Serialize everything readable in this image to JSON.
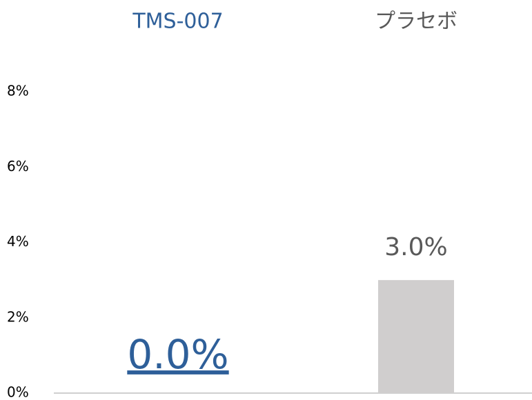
{
  "chart_data": {
    "type": "bar",
    "categories": [
      "TMS-007",
      "プラセボ"
    ],
    "values": [
      0.0,
      3.0
    ],
    "value_labels": [
      "0.0%",
      "3.0%"
    ],
    "colors": [
      "#2e5f99",
      "#d0cece"
    ],
    "label_colors": [
      "#2e5f99",
      "#595959"
    ],
    "ylim": [
      0,
      8
    ],
    "yticks": [
      {
        "value": 0,
        "label": "0%"
      },
      {
        "value": 2,
        "label": "2%"
      },
      {
        "value": 4,
        "label": "4%"
      },
      {
        "value": 6,
        "label": "6%"
      },
      {
        "value": 8,
        "label": "8%"
      }
    ],
    "grid": false
  }
}
